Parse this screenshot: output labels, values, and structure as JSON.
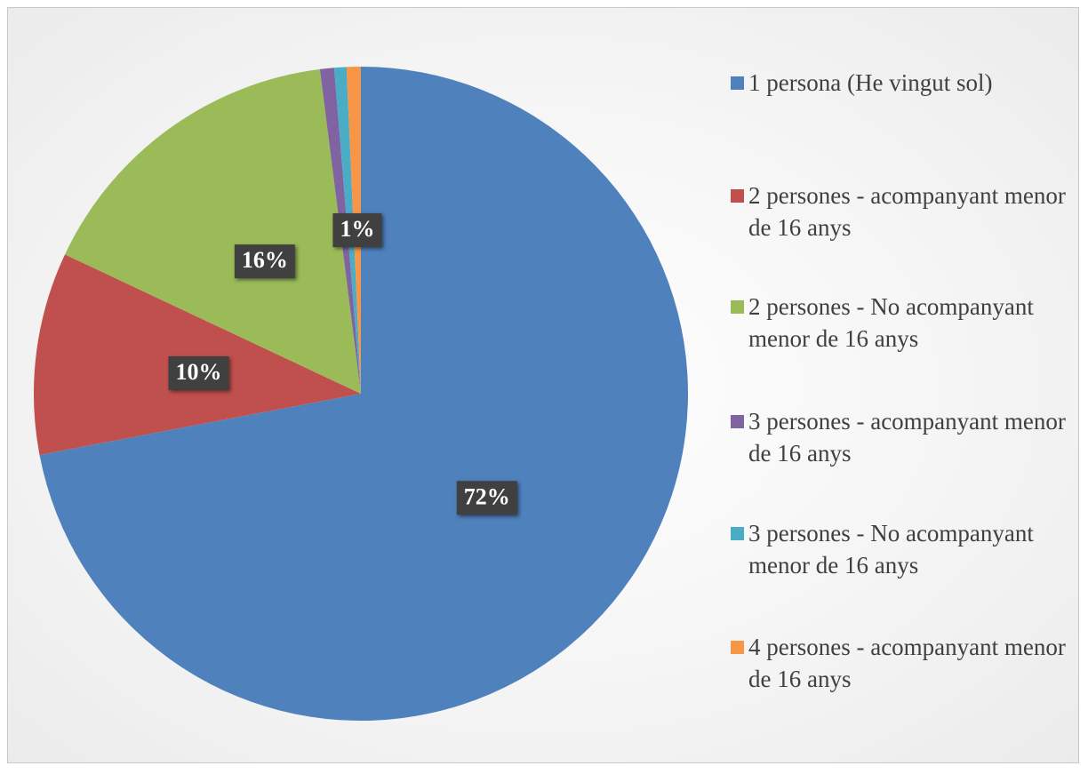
{
  "chart_data": {
    "type": "pie",
    "categories": [
      "1 persona (He vingut sol)",
      "2 persones - acompanyant menor de 16 anys",
      "2 persones - No acompanyant menor de 16 anys",
      "3 persones - acompanyant menor de 16 anys",
      "3 persones - No acompanyant menor de 16 anys",
      "4 persones - acompanyant menor de 16 anys"
    ],
    "values": [
      72,
      10,
      16,
      0.7,
      0.6,
      0.7
    ],
    "value_labels": [
      "72%",
      "10%",
      "16%",
      null,
      null,
      "1%"
    ],
    "colors": [
      "#4f81bd",
      "#c0504d",
      "#9bbb59",
      "#8064a2",
      "#4bacc6",
      "#f79646"
    ],
    "legend": "right"
  }
}
